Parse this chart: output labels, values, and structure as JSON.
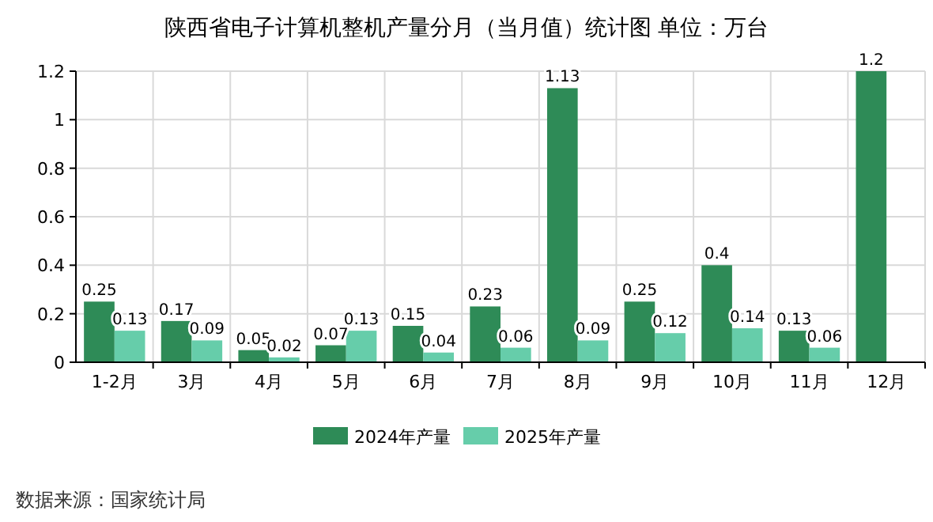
{
  "chart_data": {
    "type": "bar",
    "title": "陕西省电子计算机整机产量分月（当月值）统计图 单位：万台",
    "categories": [
      "1-2月",
      "3月",
      "4月",
      "5月",
      "6月",
      "7月",
      "8月",
      "9月",
      "10月",
      "11月",
      "12月"
    ],
    "series": [
      {
        "name": "2024年产量",
        "color": "#2e8b57",
        "values": [
          0.25,
          0.17,
          0.05,
          0.07,
          0.15,
          0.23,
          1.13,
          0.25,
          0.4,
          0.13,
          1.2
        ]
      },
      {
        "name": "2025年产量",
        "color": "#66cdaa",
        "values": [
          0.13,
          0.09,
          0.02,
          0.13,
          0.04,
          0.06,
          0.09,
          0.12,
          0.14,
          0.06,
          null
        ]
      }
    ],
    "ylim": [
      0,
      1.2
    ],
    "yticks": [
      0,
      {
        "value": 0.2,
        "label": "0.2"
      },
      {
        "value": 0.4,
        "label": "0.4"
      },
      {
        "value": 0.6,
        "label": "0.6"
      },
      {
        "value": 0.8,
        "label": "0.8"
      },
      1,
      {
        "value": 1.2,
        "label": "1.2"
      }
    ],
    "grid": true,
    "legend": "bottom",
    "data_labels": true,
    "annotations": [
      "数据来源：国家统计局"
    ]
  }
}
